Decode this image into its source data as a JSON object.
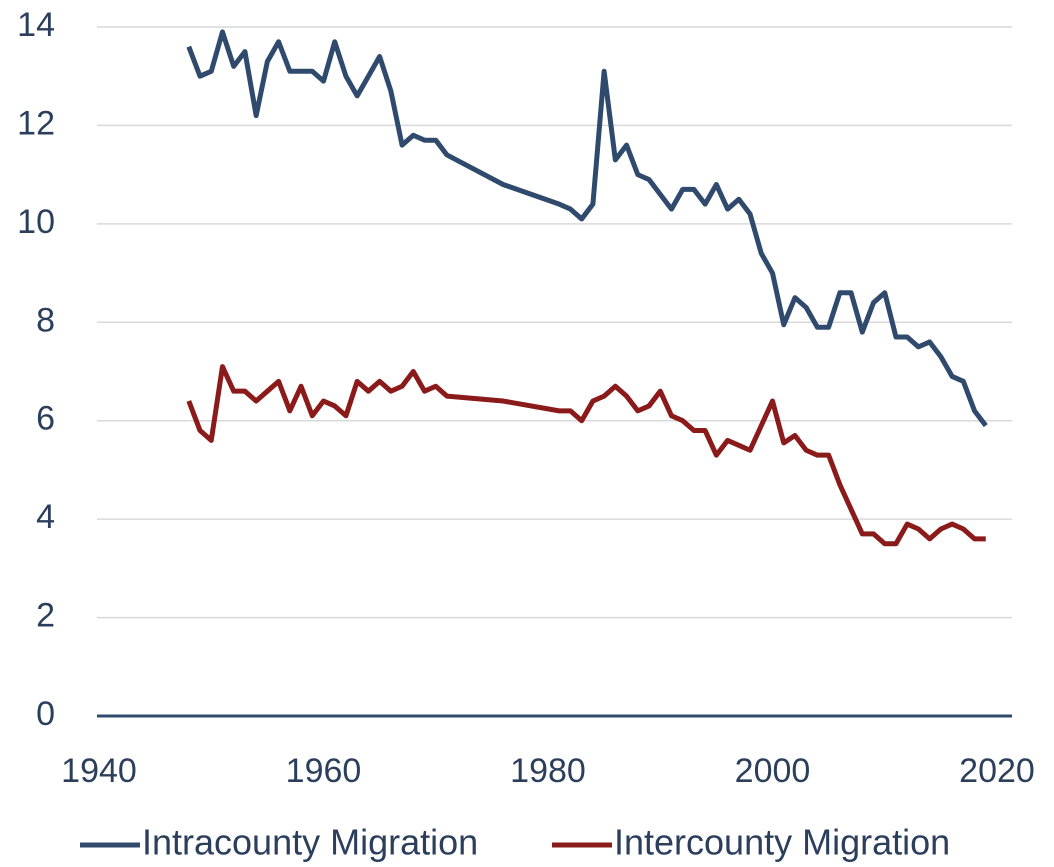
{
  "chart_data": {
    "type": "line",
    "x": [
      1948,
      1949,
      1950,
      1951,
      1952,
      1953,
      1954,
      1955,
      1956,
      1957,
      1958,
      1959,
      1960,
      1961,
      1962,
      1963,
      1964,
      1965,
      1966,
      1967,
      1968,
      1969,
      1970,
      1971,
      1976,
      1981,
      1982,
      1983,
      1984,
      1985,
      1986,
      1987,
      1988,
      1989,
      1990,
      1991,
      1992,
      1993,
      1994,
      1995,
      1996,
      1997,
      1998,
      1999,
      2000,
      2001,
      2002,
      2003,
      2004,
      2005,
      2006,
      2007,
      2008,
      2009,
      2010,
      2011,
      2012,
      2013,
      2014,
      2015,
      2016,
      2017,
      2018,
      2019
    ],
    "series": [
      {
        "name": "Intracounty Migration",
        "color": "#2f4a6d",
        "values": [
          13.6,
          13.0,
          13.1,
          13.9,
          13.2,
          13.5,
          12.2,
          13.3,
          13.7,
          13.1,
          13.1,
          13.1,
          12.9,
          13.7,
          13.0,
          12.6,
          13.0,
          13.4,
          12.7,
          11.6,
          11.8,
          11.7,
          11.7,
          11.4,
          10.8,
          10.4,
          10.3,
          10.1,
          10.4,
          13.1,
          11.3,
          11.6,
          11.0,
          10.9,
          10.6,
          10.3,
          10.7,
          10.7,
          10.4,
          10.8,
          10.3,
          10.5,
          10.2,
          9.4,
          9.0,
          7.95,
          8.5,
          8.3,
          7.9,
          7.9,
          8.6,
          8.6,
          7.8,
          8.4,
          8.6,
          7.7,
          7.7,
          7.5,
          7.6,
          7.3,
          6.9,
          6.8,
          6.2,
          5.9
        ]
      },
      {
        "name": "Intercounty Migration",
        "color": "#8b1a1a",
        "values": [
          6.4,
          5.8,
          5.6,
          7.1,
          6.6,
          6.6,
          6.4,
          6.6,
          6.8,
          6.2,
          6.7,
          6.1,
          6.4,
          6.3,
          6.1,
          6.8,
          6.6,
          6.8,
          6.6,
          6.7,
          7.0,
          6.6,
          6.7,
          6.5,
          6.4,
          6.2,
          6.2,
          6.0,
          6.4,
          6.5,
          6.7,
          6.5,
          6.2,
          6.3,
          6.6,
          6.1,
          6.0,
          5.8,
          5.8,
          5.3,
          5.6,
          5.5,
          5.4,
          5.9,
          6.4,
          5.55,
          5.7,
          5.4,
          5.3,
          5.3,
          4.7,
          4.2,
          3.7,
          3.7,
          3.5,
          3.5,
          3.9,
          3.8,
          3.6,
          3.8,
          3.9,
          3.8,
          3.6,
          3.6
        ]
      }
    ],
    "xlim": [
      1940,
      2020
    ],
    "xticks": [
      1940,
      1960,
      1980,
      2000,
      2020
    ],
    "ylim": [
      0,
      14
    ],
    "yticks": [
      0,
      2,
      4,
      6,
      8,
      10,
      12,
      14
    ],
    "grid": true,
    "legend": "bottom"
  }
}
